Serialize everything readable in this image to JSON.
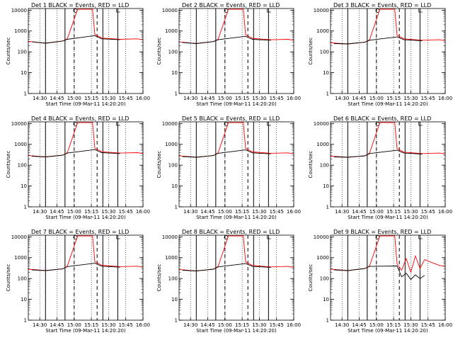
{
  "chart_data": [
    {
      "type": "line",
      "title": "Det 1  BLACK = Events, RED = LLD",
      "xlabel": "Start Time (09-Mar-11 14:20:20)",
      "ylabel": "Counts/sec",
      "x_tick_labels": [
        "14:30",
        "14:45",
        "15:00",
        "15:15",
        "15:30",
        "15:45",
        "16:00"
      ],
      "y_tick_labels": [
        "1",
        "10",
        "100",
        "1000",
        "10000"
      ],
      "y_scale": "log",
      "ylim": [
        1,
        12000
      ],
      "xlim": [
        "14:20",
        "16:00"
      ],
      "grid": "dotted vertical lines at major ticks",
      "series": [
        {
          "color": "#000000",
          "x": [
            "14:23",
            "14:35",
            "14:50",
            "14:54",
            "15:18",
            "15:24",
            "15:40"
          ],
          "y": [
            300,
            260,
            330,
            400,
            600,
            420,
            380
          ]
        },
        {
          "color": "#ff0000",
          "x": [
            "14:20",
            "14:35",
            "14:50",
            "14:54",
            "15:03",
            "15:10",
            "15:16",
            "15:18",
            "15:24",
            "15:40",
            "15:55",
            "16:00"
          ],
          "y": [
            320,
            260,
            330,
            420,
            11000,
            11000,
            11000,
            700,
            460,
            400,
            420,
            380
          ]
        }
      ]
    },
    {
      "type": "line",
      "title": "Det 2  BLACK = Events, RED = LLD",
      "xlabel": "Start Time (09-Mar-11 14:20:20)",
      "ylabel": "Counts/sec",
      "x_tick_labels": [
        "14:30",
        "14:45",
        "15:00",
        "15:15",
        "15:30",
        "15:45",
        "16:00"
      ],
      "y_tick_labels": [
        "1",
        "10",
        "100",
        "1000",
        "10000"
      ],
      "y_scale": "log",
      "ylim": [
        1,
        12000
      ],
      "xlim": [
        "14:20",
        "16:00"
      ],
      "grid": "dotted vertical lines at major ticks",
      "series": [
        {
          "color": "#000000",
          "x": [
            "14:23",
            "14:35",
            "14:50",
            "14:54",
            "15:18",
            "15:24",
            "15:40"
          ],
          "y": [
            280,
            250,
            310,
            380,
            560,
            400,
            360
          ]
        },
        {
          "color": "#ff0000",
          "x": [
            "14:20",
            "14:35",
            "14:50",
            "14:54",
            "15:03",
            "15:10",
            "15:16",
            "15:18",
            "15:24",
            "15:40",
            "15:55",
            "16:00"
          ],
          "y": [
            300,
            250,
            310,
            400,
            11000,
            11000,
            11000,
            660,
            440,
            380,
            400,
            360
          ]
        }
      ]
    },
    {
      "type": "line",
      "title": "Det 3  BLACK = Events, RED = LLD",
      "xlabel": "Start Time (09-Mar-11 14:20:20)",
      "ylabel": "Counts/sec",
      "x_tick_labels": [
        "14:30",
        "14:45",
        "15:00",
        "15:15",
        "15:30",
        "15:45",
        "16:00"
      ],
      "y_tick_labels": [
        "1",
        "10",
        "100",
        "1000",
        "10000"
      ],
      "y_scale": "log",
      "ylim": [
        1,
        12000
      ],
      "xlim": [
        "14:20",
        "16:00"
      ],
      "grid": "dotted vertical lines at major ticks",
      "series": [
        {
          "color": "#000000",
          "x": [
            "14:23",
            "14:35",
            "14:50",
            "14:54",
            "15:18",
            "15:24",
            "15:40"
          ],
          "y": [
            250,
            240,
            290,
            360,
            520,
            380,
            340
          ]
        },
        {
          "color": "#ff0000",
          "x": [
            "14:20",
            "14:35",
            "14:50",
            "14:54",
            "15:03",
            "15:10",
            "15:16",
            "15:18",
            "15:24",
            "15:40",
            "15:55",
            "16:00"
          ],
          "y": [
            270,
            240,
            290,
            380,
            11000,
            11000,
            11000,
            620,
            420,
            360,
            380,
            340
          ]
        }
      ]
    },
    {
      "type": "line",
      "title": "Det 4  BLACK = Events, RED = LLD",
      "xlabel": "Start Time (09-Mar-11 14:20:20)",
      "ylabel": "Counts/sec",
      "x_tick_labels": [
        "14:30",
        "14:45",
        "15:00",
        "15:15",
        "15:30",
        "15:45",
        "16:00"
      ],
      "y_tick_labels": [
        "1",
        "10",
        "100",
        "1000",
        "10000"
      ],
      "y_scale": "log",
      "ylim": [
        1,
        12000
      ],
      "xlim": [
        "14:20",
        "16:00"
      ],
      "grid": "dotted vertical lines at major ticks",
      "series": [
        {
          "color": "#000000",
          "x": [
            "14:23",
            "14:35",
            "14:50",
            "14:54",
            "15:18",
            "15:24",
            "15:40"
          ],
          "y": [
            270,
            250,
            300,
            380,
            560,
            400,
            360
          ]
        },
        {
          "color": "#ff0000",
          "x": [
            "14:20",
            "14:35",
            "14:50",
            "14:54",
            "15:03",
            "15:10",
            "15:16",
            "15:18",
            "15:24",
            "15:40",
            "15:55",
            "16:00"
          ],
          "y": [
            290,
            250,
            300,
            400,
            11000,
            11000,
            11000,
            660,
            440,
            380,
            400,
            360
          ]
        }
      ]
    },
    {
      "type": "line",
      "title": "Det 5  BLACK = Events, RED = LLD",
      "xlabel": "Start Time (09-Mar-11 14:20:20)",
      "ylabel": "Counts/sec",
      "x_tick_labels": [
        "14:30",
        "14:45",
        "15:00",
        "15:15",
        "15:30",
        "15:45",
        "16:00"
      ],
      "y_tick_labels": [
        "1",
        "10",
        "100",
        "1000",
        "10000"
      ],
      "y_scale": "log",
      "ylim": [
        1,
        12000
      ],
      "xlim": [
        "14:20",
        "16:00"
      ],
      "grid": "dotted vertical lines at major ticks",
      "series": [
        {
          "color": "#000000",
          "x": [
            "14:23",
            "14:35",
            "14:50",
            "14:54",
            "15:18",
            "15:24",
            "15:40"
          ],
          "y": [
            260,
            240,
            290,
            370,
            540,
            390,
            350
          ]
        },
        {
          "color": "#ff0000",
          "x": [
            "14:20",
            "14:35",
            "14:50",
            "14:54",
            "15:03",
            "15:10",
            "15:16",
            "15:18",
            "15:24",
            "15:40",
            "15:55",
            "16:00"
          ],
          "y": [
            280,
            240,
            290,
            390,
            11000,
            11000,
            11000,
            640,
            430,
            370,
            390,
            350
          ]
        }
      ]
    },
    {
      "type": "line",
      "title": "Det 6  BLACK = Events, RED = LLD",
      "xlabel": "Start Time (09-Mar-11 14:20:20)",
      "ylabel": "Counts/sec",
      "x_tick_labels": [
        "14:30",
        "14:45",
        "15:00",
        "15:15",
        "15:30",
        "15:45",
        "16:00"
      ],
      "y_tick_labels": [
        "1",
        "10",
        "100",
        "1000",
        "10000"
      ],
      "y_scale": "log",
      "ylim": [
        1,
        12000
      ],
      "xlim": [
        "14:20",
        "16:00"
      ],
      "grid": "dotted vertical lines at major ticks",
      "series": [
        {
          "color": "#000000",
          "x": [
            "14:23",
            "14:35",
            "14:50",
            "14:54",
            "15:18",
            "15:24",
            "15:40"
          ],
          "y": [
            250,
            240,
            280,
            360,
            520,
            380,
            340
          ]
        },
        {
          "color": "#ff0000",
          "x": [
            "14:20",
            "14:35",
            "14:50",
            "14:54",
            "15:03",
            "15:10",
            "15:16",
            "15:18",
            "15:24",
            "15:40",
            "15:55",
            "16:00"
          ],
          "y": [
            270,
            240,
            280,
            380,
            11000,
            11000,
            11000,
            620,
            420,
            360,
            380,
            340
          ]
        }
      ]
    },
    {
      "type": "line",
      "title": "Det 7  BLACK = Events, RED = LLD",
      "xlabel": "Start Time (09-Mar-11 14:20:20)",
      "ylabel": "Counts/sec",
      "x_tick_labels": [
        "14:30",
        "14:45",
        "15:00",
        "15:15",
        "15:30",
        "15:45",
        "16:00"
      ],
      "y_tick_labels": [
        "1",
        "10",
        "100",
        "1000",
        "10000"
      ],
      "y_scale": "log",
      "ylim": [
        1,
        12000
      ],
      "xlim": [
        "14:20",
        "16:00"
      ],
      "grid": "dotted vertical lines at major ticks",
      "series": [
        {
          "color": "#000000",
          "x": [
            "14:23",
            "14:35",
            "14:50",
            "14:54",
            "15:18",
            "15:24",
            "15:40"
          ],
          "y": [
            260,
            240,
            290,
            370,
            540,
            390,
            350
          ]
        },
        {
          "color": "#ff0000",
          "x": [
            "14:20",
            "14:35",
            "14:50",
            "14:54",
            "15:03",
            "15:10",
            "15:16",
            "15:18",
            "15:24",
            "15:40",
            "15:55",
            "16:00"
          ],
          "y": [
            280,
            240,
            290,
            390,
            11000,
            11000,
            11000,
            640,
            430,
            370,
            390,
            350
          ]
        }
      ]
    },
    {
      "type": "line",
      "title": "Det 8  BLACK = Events, RED = LLD",
      "xlabel": "Start Time (09-Mar-11 14:20:20)",
      "ylabel": "Counts/sec",
      "x_tick_labels": [
        "14:30",
        "14:45",
        "15:00",
        "15:15",
        "15:30",
        "15:45",
        "16:00"
      ],
      "y_tick_labels": [
        "1",
        "10",
        "100",
        "1000",
        "10000"
      ],
      "y_scale": "log",
      "ylim": [
        1,
        12000
      ],
      "xlim": [
        "14:20",
        "16:00"
      ],
      "grid": "dotted vertical lines at major ticks",
      "series": [
        {
          "color": "#000000",
          "x": [
            "14:23",
            "14:35",
            "14:50",
            "14:54",
            "15:18",
            "15:24",
            "15:40"
          ],
          "y": [
            250,
            230,
            280,
            360,
            520,
            380,
            340
          ]
        },
        {
          "color": "#ff0000",
          "x": [
            "14:20",
            "14:35",
            "14:50",
            "14:54",
            "15:03",
            "15:10",
            "15:16",
            "15:18",
            "15:24",
            "15:40",
            "15:55",
            "16:00"
          ],
          "y": [
            270,
            230,
            280,
            380,
            11000,
            11000,
            11000,
            620,
            420,
            360,
            380,
            340
          ]
        }
      ]
    },
    {
      "type": "line",
      "title": "Det 9  BLACK = Events, RED = LLD",
      "xlabel": "Start Time (09-Mar-11 14:20:20)",
      "ylabel": "Counts/sec",
      "x_tick_labels": [
        "14:30",
        "14:45",
        "15:00",
        "15:15",
        "15:30",
        "15:45",
        "16:00"
      ],
      "y_tick_labels": [
        "1",
        "10",
        "100",
        "1000",
        "10000"
      ],
      "y_scale": "log",
      "ylim": [
        1,
        12000
      ],
      "xlim": [
        "14:20",
        "16:00"
      ],
      "grid": "dotted vertical lines at major ticks",
      "series": [
        {
          "color": "#000000",
          "x": [
            "14:23",
            "14:35",
            "14:50",
            "14:54",
            "15:18",
            "15:22",
            "15:26",
            "15:30",
            "15:34",
            "15:38",
            "15:42"
          ],
          "y": [
            260,
            240,
            300,
            380,
            400,
            120,
            180,
            90,
            150,
            100,
            140
          ]
        },
        {
          "color": "#ff0000",
          "x": [
            "14:20",
            "14:35",
            "14:50",
            "14:54",
            "15:03",
            "15:10",
            "15:16",
            "15:18",
            "15:22",
            "15:26",
            "15:30",
            "15:34",
            "15:38",
            "15:42",
            "15:55",
            "16:00"
          ],
          "y": [
            280,
            240,
            300,
            400,
            11000,
            11000,
            11000,
            500,
            250,
            900,
            200,
            1200,
            300,
            800,
            420,
            380
          ]
        }
      ]
    }
  ]
}
